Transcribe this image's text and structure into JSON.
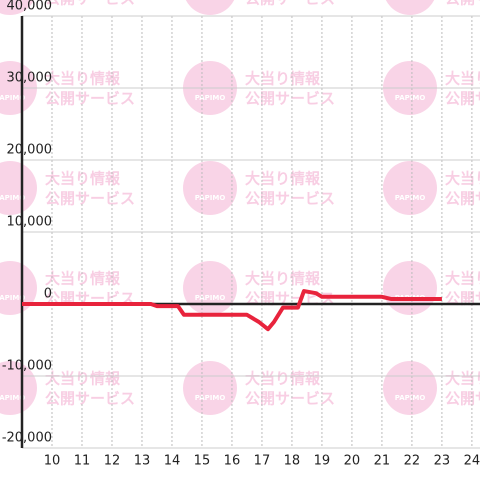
{
  "chart_data": {
    "type": "line",
    "watermark": {
      "line1": "大当り情報",
      "line2": "公開サービス",
      "logo": "PAPIMO"
    },
    "x": [
      9,
      13.3,
      13.5,
      14.2,
      14.4,
      16.5,
      16.9,
      17.2,
      17.4,
      17.7,
      18.2,
      18.4,
      18.8,
      19,
      21,
      21.3,
      23
    ],
    "series": [
      {
        "color": "#e8233c",
        "values": [
          0,
          0,
          -300,
          -300,
          -1500,
          -1500,
          -2500,
          -3500,
          -2500,
          -500,
          -500,
          1800,
          1500,
          1000,
          1000,
          700,
          700
        ]
      }
    ],
    "xlim": [
      9,
      24.27
    ],
    "xticks": [
      10,
      11,
      12,
      13,
      14,
      15,
      16,
      17,
      18,
      19,
      20,
      21,
      22,
      23,
      24
    ],
    "ylim": [
      -20000,
      40000
    ],
    "yticks": [
      {
        "value": -20000,
        "label": "-20,000"
      },
      {
        "value": -10000,
        "label": "-10,000"
      },
      0,
      {
        "value": 10000,
        "label": "10,000"
      },
      {
        "value": 20000,
        "label": "20,000"
      },
      {
        "value": 30000,
        "label": "30,000"
      },
      {
        "value": 40000,
        "label": "40,000"
      }
    ],
    "grid": true
  }
}
